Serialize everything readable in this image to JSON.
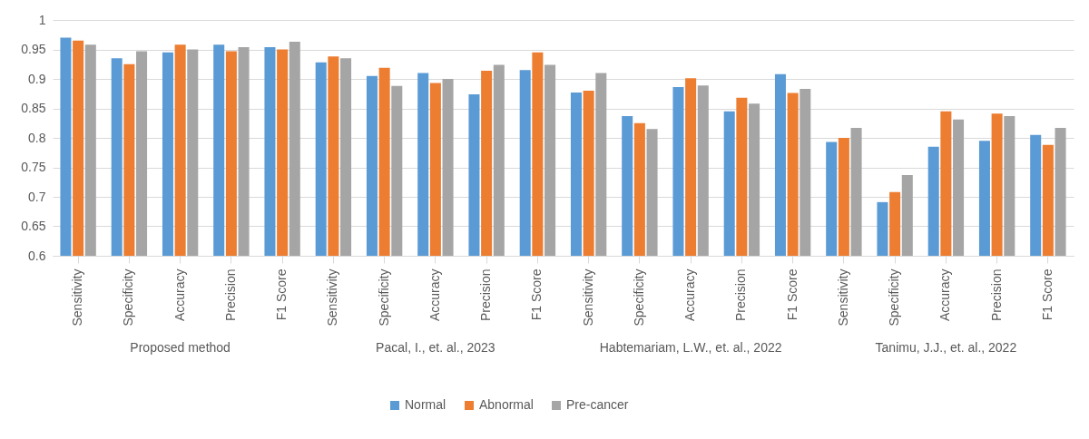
{
  "chart_data": {
    "type": "bar",
    "categories": [
      "Sensitivity",
      "Specificity",
      "Accuracy",
      "Precision",
      "F1 Score",
      "Sensitivity",
      "Specificity",
      "Accuracy",
      "Precision",
      "F1 Score",
      "Sensitivity",
      "Specificity",
      "Accuracy",
      "Precision",
      "F1 Score",
      "Sensitivity",
      "Specificity",
      "Accuracy",
      "Precision",
      "F1 Score"
    ],
    "series": [
      {
        "name": "Normal",
        "color": "#5b9bd5",
        "values": [
          0.97,
          0.935,
          0.945,
          0.958,
          0.954,
          0.928,
          0.905,
          0.91,
          0.874,
          0.915,
          0.877,
          0.837,
          0.886,
          0.845,
          0.908,
          0.793,
          0.691,
          0.785,
          0.795,
          0.805
        ]
      },
      {
        "name": "Abnormal",
        "color": "#ed7d31",
        "values": [
          0.965,
          0.925,
          0.958,
          0.947,
          0.95,
          0.938,
          0.919,
          0.893,
          0.914,
          0.945,
          0.88,
          0.825,
          0.901,
          0.868,
          0.876,
          0.8,
          0.708,
          0.845,
          0.841,
          0.788
        ]
      },
      {
        "name": "Pre-cancer",
        "color": "#a5a5a5",
        "values": [
          0.958,
          0.947,
          0.95,
          0.954,
          0.963,
          0.935,
          0.888,
          0.9,
          0.924,
          0.924,
          0.91,
          0.815,
          0.889,
          0.858,
          0.883,
          0.817,
          0.737,
          0.831,
          0.837,
          0.817
        ]
      }
    ],
    "annotations": [
      "Proposed method",
      "Pacal, I., et. al., 2023",
      "Habtemariam, L.W., et. al., 2022",
      "Tanimu, J.J., et. al., 2022"
    ],
    "ylim": [
      0.6,
      1
    ],
    "yticks": [
      0.6,
      0.65,
      0.7,
      0.75,
      0.8,
      0.85,
      0.9,
      0.95,
      1
    ],
    "grid": "y",
    "legend": "bottom"
  }
}
